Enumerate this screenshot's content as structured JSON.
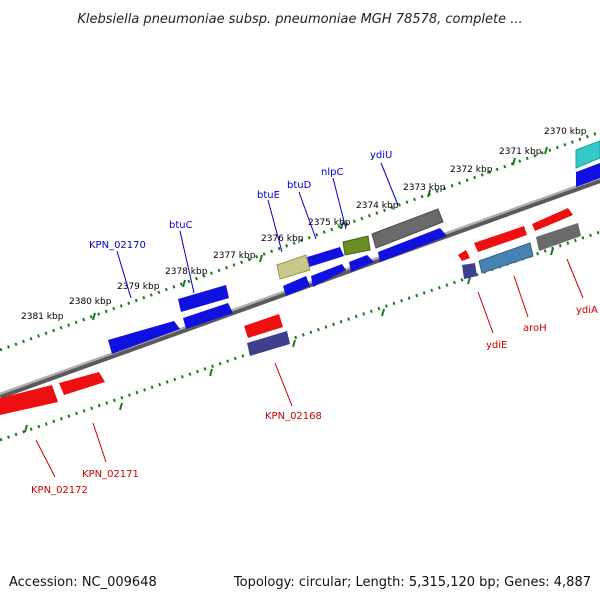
{
  "header": {
    "title": "Klebsiella pneumoniae subsp. pneumoniae MGH 78578, complete ..."
  },
  "footer": {
    "accession": "Accession: NC_009648",
    "summary": "Topology: circular; Length: 5,315,120 bp; Genes: 4,887"
  },
  "colors": {
    "forward_label": "#0000cc",
    "reverse_label": "#cc0000",
    "backbone": "#808080",
    "tick": "#1a7a1a"
  },
  "scale_labels": [
    "2370 kbp",
    "2371 kbp",
    "2372 kbp",
    "2373 kbp",
    "2374 kbp",
    "2375 kbp",
    "2376 kbp",
    "2377 kbp",
    "2378 kbp",
    "2379 kbp",
    "2380 kbp",
    "2381 kbp"
  ],
  "gene_labels": {
    "forward": [
      "ydiU",
      "nlpC",
      "btuD",
      "btuE",
      "btuC",
      "KPN_02170"
    ],
    "reverse": [
      "ydiA",
      "aroH",
      "ydiE",
      "KPN_02168",
      "KPN_02171",
      "KPN_02172"
    ]
  }
}
